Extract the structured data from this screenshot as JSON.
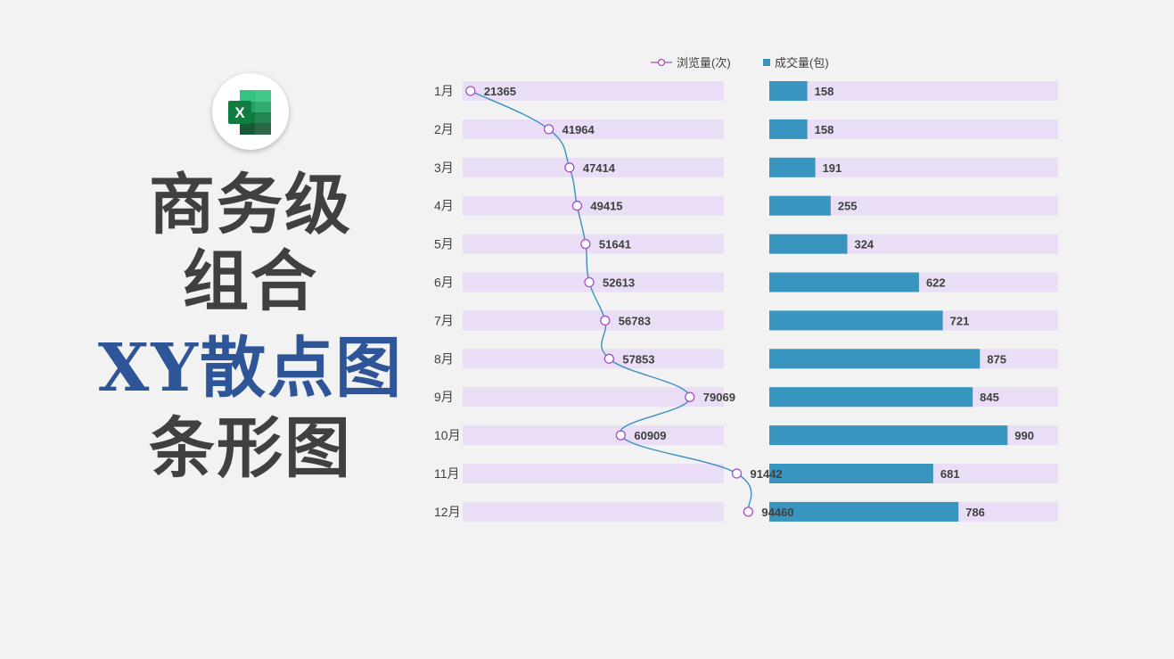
{
  "title": {
    "lines": [
      "商务级",
      "组合",
      "XY散点图",
      "条形图"
    ]
  },
  "logo": {
    "icon": "excel-icon",
    "letter": "X"
  },
  "colors": {
    "title": "#404040",
    "title_accent": "#2e5597",
    "band": "#e9def5",
    "line": "#3b8fc3",
    "marker": "#a64ec4",
    "bar": "#3795bf",
    "label": "#404040",
    "background": "#f2f2f2"
  },
  "chart_data": [
    {
      "type": "scatter",
      "categories": [
        "1月",
        "2月",
        "3月",
        "4月",
        "5月",
        "6月",
        "7月",
        "8月",
        "9月",
        "10月",
        "11月",
        "12月"
      ],
      "series": [
        {
          "name": "浏览量(次)",
          "values": [
            21365,
            41964,
            47414,
            49415,
            51641,
            52613,
            56783,
            57853,
            79069,
            60909,
            91442,
            94460
          ]
        }
      ],
      "xlim": [
        20000,
        100000
      ],
      "legend": "top",
      "data_labels": true,
      "grid": false
    },
    {
      "type": "bar",
      "categories": [
        "1月",
        "2月",
        "3月",
        "4月",
        "5月",
        "6月",
        "7月",
        "8月",
        "9月",
        "10月",
        "11月",
        "12月"
      ],
      "series": [
        {
          "name": "成交量(包)",
          "values": [
            158,
            158,
            191,
            255,
            324,
            622,
            721,
            875,
            845,
            990,
            681,
            786
          ]
        }
      ],
      "xlim": [
        0,
        1200
      ],
      "legend": "top",
      "data_labels": true,
      "grid": false
    }
  ]
}
